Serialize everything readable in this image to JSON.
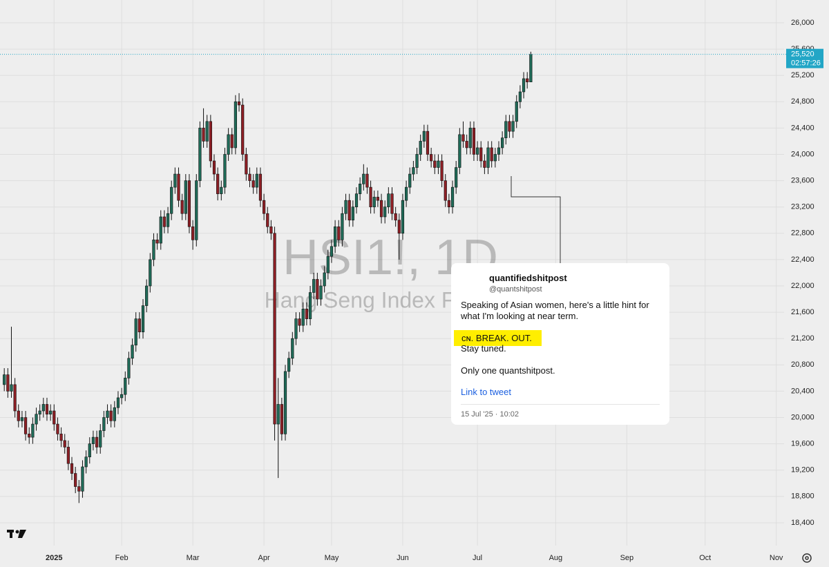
{
  "chart_data": {
    "type": "candlestick",
    "title": "HSI1!, 1D",
    "subtitle": "Hang Seng Index Futures",
    "open": [
      20500,
      20650,
      20400,
      20500,
      20100,
      19950,
      20000,
      19750,
      19700,
      19900,
      20050,
      20100,
      20200,
      20050,
      20100,
      19900,
      19750,
      19650,
      19550,
      19300,
      19150,
      18950,
      18880,
      19250,
      19400,
      19600,
      19700,
      19550,
      19800,
      20000,
      20100,
      19950,
      20150,
      20300,
      20350,
      20600,
      20900,
      21100,
      21500,
      21300,
      21700,
      22000,
      22400,
      22700,
      22650,
      23050,
      22900,
      23100,
      23500,
      23700,
      23300,
      23100,
      23600,
      22900,
      22700,
      23600,
      24400,
      24200,
      24500,
      23900,
      23700,
      23400,
      23500,
      24000,
      24300,
      24100,
      24800,
      24750,
      24000,
      23700,
      23600,
      23500,
      23700,
      23300,
      23100,
      22900,
      22800,
      19900,
      20200,
      19750,
      20700,
      20900,
      21200,
      21500,
      21400,
      21650,
      21500,
      21900,
      22100,
      21800,
      22000,
      22200,
      22450,
      22600,
      22900,
      22700,
      23100,
      23300,
      23000,
      23200,
      23400,
      23550,
      23700,
      23500,
      23200,
      23350,
      23300,
      23050,
      23200,
      23400,
      23100,
      23000,
      22800,
      23300,
      23500,
      23700,
      23800,
      24000,
      24200,
      24350,
      24000,
      23900,
      23800,
      23900,
      23600,
      23300,
      23200,
      23500,
      23800,
      24300,
      24200,
      24100,
      24400,
      24000,
      24100,
      23900,
      23800,
      24100,
      23900,
      24000,
      24100,
      24250,
      24500,
      24350,
      24500,
      24800,
      24950,
      25150,
      25100
    ],
    "high": [
      20750,
      20750,
      21380,
      20600,
      20200,
      20100,
      20100,
      19850,
      20000,
      20150,
      20200,
      20300,
      20300,
      20200,
      20200,
      20000,
      19850,
      19750,
      19650,
      19400,
      19250,
      19050,
      19350,
      19500,
      19700,
      19800,
      19800,
      19900,
      20100,
      20200,
      20200,
      20250,
      20400,
      20450,
      20700,
      21000,
      21200,
      21600,
      21600,
      21800,
      22100,
      22500,
      22800,
      22800,
      23150,
      23150,
      23200,
      23600,
      23800,
      23800,
      23400,
      23700,
      23700,
      23000,
      23700,
      24500,
      24700,
      24600,
      24600,
      24000,
      23800,
      23600,
      24100,
      24400,
      24400,
      24900,
      24930,
      24850,
      24100,
      23800,
      23700,
      23800,
      23800,
      23400,
      23200,
      23000,
      22900,
      20600,
      20300,
      20800,
      21000,
      21300,
      21600,
      21600,
      21750,
      21750,
      22000,
      22200,
      22200,
      22100,
      22300,
      22550,
      22700,
      23000,
      23000,
      23200,
      23400,
      23400,
      23300,
      23500,
      23650,
      23850,
      23800,
      23600,
      23450,
      23450,
      23400,
      23300,
      23500,
      23500,
      23200,
      23100,
      23400,
      23600,
      23800,
      23900,
      24100,
      24300,
      24450,
      24450,
      24100,
      24000,
      24000,
      24000,
      23700,
      23400,
      23600,
      23900,
      24400,
      24500,
      24300,
      24500,
      24500,
      24200,
      24200,
      24000,
      24200,
      24200,
      24100,
      24200,
      24350,
      24600,
      24600,
      24600,
      24900,
      25050,
      25250,
      25250,
      25560
    ],
    "low": [
      20400,
      20300,
      20300,
      20000,
      19850,
      19850,
      19650,
      19600,
      19600,
      19800,
      19950,
      20000,
      19950,
      19950,
      19800,
      19650,
      19550,
      19450,
      19200,
      19050,
      18850,
      18700,
      18780,
      19150,
      19300,
      19500,
      19450,
      19450,
      19700,
      19900,
      19850,
      19850,
      20050,
      20200,
      20250,
      20500,
      20800,
      21000,
      21200,
      21200,
      21600,
      21900,
      22300,
      22550,
      22550,
      22800,
      22800,
      23000,
      23400,
      23200,
      23000,
      23000,
      22800,
      22550,
      22600,
      23500,
      24100,
      24100,
      23800,
      23600,
      23300,
      23300,
      23400,
      23900,
      24000,
      24000,
      24650,
      23900,
      23600,
      23500,
      23400,
      23400,
      23200,
      23000,
      22800,
      22700,
      19650,
      19080,
      19650,
      19650,
      20600,
      20800,
      21100,
      21300,
      21300,
      21400,
      21400,
      21800,
      21700,
      21700,
      21900,
      22100,
      22350,
      22500,
      22600,
      22600,
      23000,
      22900,
      22900,
      23100,
      23300,
      23450,
      23400,
      23100,
      23100,
      23200,
      22950,
      22950,
      23100,
      23000,
      22900,
      22400,
      22700,
      23200,
      23400,
      23600,
      23700,
      23900,
      24100,
      23900,
      23800,
      23700,
      23700,
      23500,
      23200,
      23100,
      23100,
      23400,
      23700,
      24100,
      24000,
      24000,
      23900,
      23900,
      23800,
      23700,
      23700,
      23800,
      23800,
      23900,
      24000,
      24150,
      24250,
      24250,
      24400,
      24700,
      24850,
      25000,
      25100
    ],
    "close": [
      20650,
      20400,
      20500,
      20100,
      19950,
      20000,
      19750,
      19700,
      19900,
      20050,
      20100,
      20200,
      20050,
      20100,
      19900,
      19750,
      19650,
      19550,
      19300,
      19150,
      18950,
      18880,
      19250,
      19400,
      19600,
      19700,
      19550,
      19800,
      20000,
      20100,
      19950,
      20150,
      20300,
      20350,
      20600,
      20900,
      21100,
      21500,
      21300,
      21700,
      22000,
      22400,
      22700,
      22650,
      23050,
      22900,
      23100,
      23500,
      23700,
      23300,
      23100,
      23600,
      22900,
      22700,
      23600,
      24400,
      24200,
      24500,
      23900,
      23700,
      23400,
      23500,
      24000,
      24300,
      24100,
      24800,
      24750,
      24000,
      23700,
      23600,
      23500,
      23700,
      23300,
      23100,
      22900,
      22800,
      19900,
      20200,
      19750,
      20700,
      20900,
      21200,
      21500,
      21400,
      21650,
      21500,
      21900,
      22100,
      21800,
      22000,
      22200,
      22450,
      22600,
      22900,
      22700,
      23100,
      23300,
      23000,
      23200,
      23400,
      23550,
      23700,
      23500,
      23200,
      23350,
      23300,
      23050,
      23200,
      23400,
      23100,
      23000,
      22800,
      23300,
      23500,
      23700,
      23800,
      24000,
      24200,
      24350,
      24000,
      23900,
      23800,
      23900,
      23600,
      23300,
      23200,
      23500,
      23800,
      24300,
      24200,
      24100,
      24400,
      24000,
      24100,
      23900,
      23800,
      24100,
      23900,
      24000,
      24100,
      24250,
      24500,
      24350,
      24500,
      24800,
      24950,
      25150,
      25100,
      25520
    ],
    "up_color": "#1f6b58",
    "down_color": "#8e1f25",
    "xlim": [
      -1.2,
      219.2
    ],
    "xticks": [
      {
        "value": 14,
        "label": "2025"
      },
      {
        "value": 33,
        "label": "Feb"
      },
      {
        "value": 53,
        "label": "Mar"
      },
      {
        "value": 73,
        "label": "Apr"
      },
      {
        "value": 92,
        "label": "May"
      },
      {
        "value": 112,
        "label": "Jun"
      },
      {
        "value": 133,
        "label": "Jul"
      },
      {
        "value": 155,
        "label": "Aug"
      },
      {
        "value": 175,
        "label": "Sep"
      },
      {
        "value": 197,
        "label": "Oct"
      },
      {
        "value": 217,
        "label": "Nov"
      }
    ],
    "ylim": [
      18053,
      26346
    ],
    "yticks": [
      {
        "value": 18400,
        "label": "18,400"
      },
      {
        "value": 18800,
        "label": "18,800"
      },
      {
        "value": 19200,
        "label": "19,200"
      },
      {
        "value": 19600,
        "label": "19,600"
      },
      {
        "value": 20000,
        "label": "20,000"
      },
      {
        "value": 20400,
        "label": "20,400"
      },
      {
        "value": 20800,
        "label": "20,800"
      },
      {
        "value": 21200,
        "label": "21,200"
      },
      {
        "value": 21600,
        "label": "21,600"
      },
      {
        "value": 22000,
        "label": "22,000"
      },
      {
        "value": 22400,
        "label": "22,400"
      },
      {
        "value": 22800,
        "label": "22,800"
      },
      {
        "value": 23200,
        "label": "23,200"
      },
      {
        "value": 23600,
        "label": "23,600"
      },
      {
        "value": 24000,
        "label": "24,000"
      },
      {
        "value": 24400,
        "label": "24,400"
      },
      {
        "value": 24800,
        "label": "24,800"
      },
      {
        "value": 25200,
        "label": "25,200"
      },
      {
        "value": 25600,
        "label": "25,600"
      },
      {
        "value": 26000,
        "label": "26,000"
      }
    ],
    "grid": true,
    "last_price": {
      "value": 25520,
      "label": "25,520"
    },
    "countdown": "02:57:26"
  },
  "tweet": {
    "name": "quantifiedshitpost",
    "handle": "@quantshitpost",
    "text": "Speaking of Asian women, here's a little hint for what I'm looking at near term.",
    "highlight": "ᴄɴ. BREAK. OUT.",
    "line2": "Stay tuned.",
    "line3": "Only one quantshitpost.",
    "link": "Link to tweet",
    "date": "15 Jul '25 · 10:02"
  }
}
